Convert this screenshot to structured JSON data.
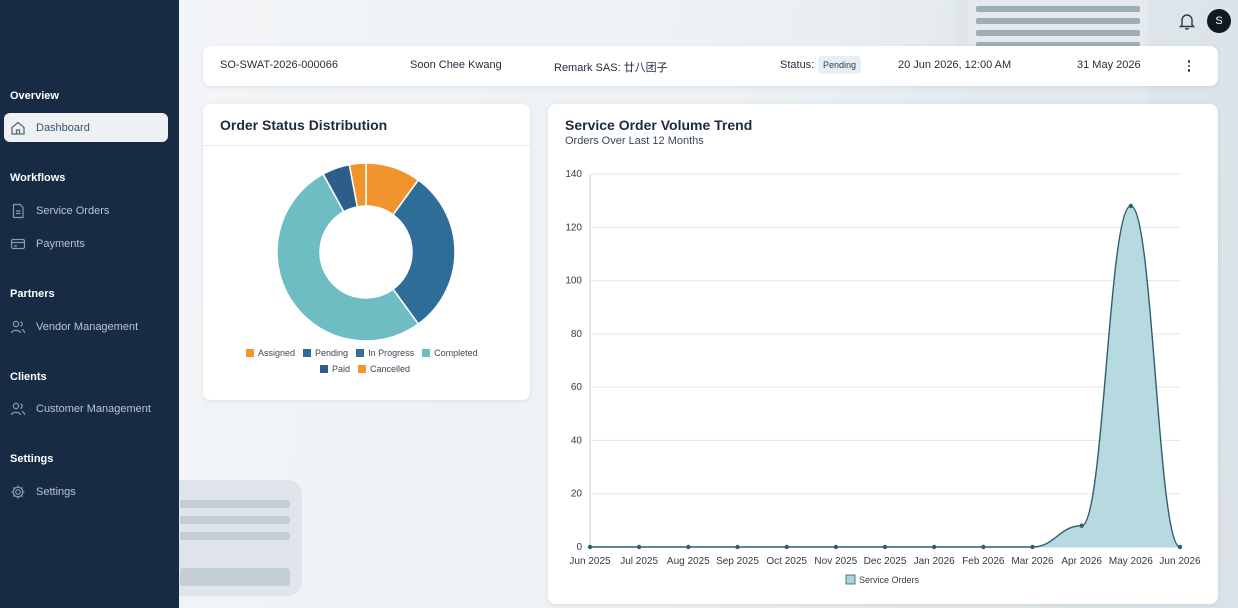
{
  "sidebar": {
    "sections": [
      {
        "title": "Overview",
        "items": [
          {
            "label": "Dashboard",
            "icon": "home-icon",
            "active": true
          }
        ]
      },
      {
        "title": "Workflows",
        "items": [
          {
            "label": "Service Orders",
            "icon": "document-icon"
          },
          {
            "label": "Payments",
            "icon": "credit-card-icon"
          }
        ]
      },
      {
        "title": "Partners",
        "items": [
          {
            "label": "Vendor Management",
            "icon": "users-icon"
          }
        ]
      },
      {
        "title": "Clients",
        "items": [
          {
            "label": "Customer Management",
            "icon": "users-icon"
          }
        ]
      },
      {
        "title": "Settings",
        "items": [
          {
            "label": "Settings",
            "icon": "gear-icon"
          }
        ]
      }
    ]
  },
  "header": {
    "avatar_initial": "S",
    "notification_icon": "bell-icon"
  },
  "order_bar": {
    "order_id": "SO-SWAT-2026-000066",
    "customer": "Soon Chee Kwang",
    "remark": "Remark SAS: 廿八团子",
    "status_label": "Status:",
    "status_value": "Pending",
    "datetime": "20 Jun 2026, 12:00 AM",
    "date": "31 May 2026",
    "more_icon": "more-vertical-icon"
  },
  "status_card": {
    "title": "Order Status Distribution"
  },
  "trend_card": {
    "title": "Service Order Volume Trend",
    "subtitle": "Orders Over Last 12 Months"
  },
  "colors": {
    "sidebar_bg": "#172b44",
    "assigned": "#f0952e",
    "pending": "#2f6d99",
    "in_progress": "#3d6e96",
    "completed": "#6dbdc3",
    "paid": "#2b5f8a",
    "cancelled": "#f0952e",
    "area_fill": "#a9d3d9",
    "area_line": "#2f5f6f"
  },
  "chart_data": [
    {
      "type": "pie",
      "variant": "donut",
      "categories": [
        "Assigned",
        "Pending",
        "In Progress",
        "Completed",
        "Paid",
        "Cancelled"
      ],
      "values": [
        10,
        30,
        0,
        52,
        5,
        3
      ],
      "legend_rows": [
        [
          "Assigned",
          "Pending",
          "In Progress",
          "Completed"
        ],
        [
          "Paid",
          "Cancelled"
        ]
      ]
    },
    {
      "type": "area",
      "categories": [
        "Jun 2025",
        "Jul 2025",
        "Aug 2025",
        "Sep 2025",
        "Oct 2025",
        "Nov 2025",
        "Dec 2025",
        "Jan 2026",
        "Feb 2026",
        "Mar 2026",
        "Apr 2026",
        "May 2026",
        "Jun 2026"
      ],
      "series": [
        {
          "name": "Service Orders",
          "values": [
            0,
            0,
            0,
            0,
            0,
            0,
            0,
            0,
            0,
            0,
            8,
            128,
            0
          ]
        }
      ],
      "ylim": [
        0,
        140
      ],
      "yticks": [
        0,
        20,
        40,
        60,
        80,
        100,
        120,
        140
      ],
      "grid": true,
      "legend_position": "bottom"
    }
  ]
}
